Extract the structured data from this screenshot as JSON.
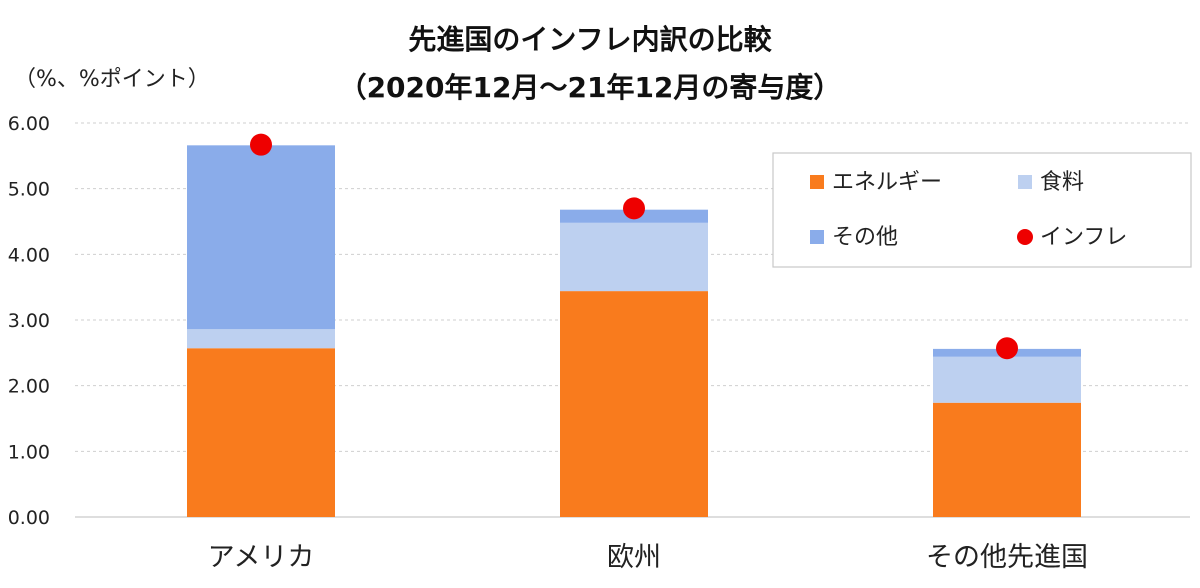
{
  "chart_data": {
    "type": "bar",
    "stacked": true,
    "title": "先進国のインフレ内訳の比較",
    "subtitle": "（2020年12月～21年12月の寄与度）",
    "ylabel": "（%、%ポイント）",
    "xlabel": "",
    "ylim": [
      0,
      6
    ],
    "yticks": [
      "0.00",
      "1.00",
      "2.00",
      "3.00",
      "4.00",
      "5.00",
      "6.00"
    ],
    "grid": true,
    "legend_position": "top-right",
    "categories": [
      "アメリカ",
      "欧州",
      "その他先進国"
    ],
    "series": [
      {
        "name": "エネルギー",
        "color": "#f97b1d",
        "values": [
          2.57,
          3.44,
          1.74
        ]
      },
      {
        "name": "食料",
        "color": "#bdd0f0",
        "values": [
          0.29,
          1.04,
          0.7
        ]
      },
      {
        "name": "その他",
        "color": "#8aacea",
        "values": [
          2.8,
          0.2,
          0.12
        ]
      }
    ],
    "markers": {
      "name": "インフレ",
      "color": "#ee0000",
      "values": [
        5.67,
        4.7,
        2.57
      ]
    }
  }
}
